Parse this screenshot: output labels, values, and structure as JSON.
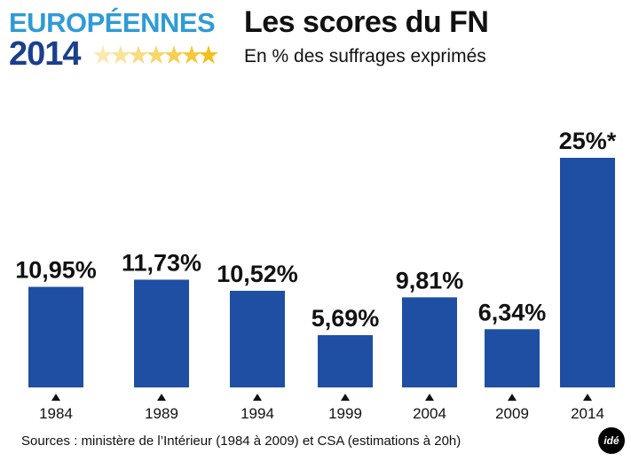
{
  "header": {
    "logo_line1": "EUROPÉENNES",
    "logo_line2": "2014",
    "title": "Les scores du FN",
    "subtitle": "En % des suffrages exprimés"
  },
  "chart_data": {
    "type": "bar",
    "title": "Les scores du FN",
    "subtitle": "En % des suffrages exprimés",
    "categories": [
      "1984",
      "1989",
      "1994",
      "1999",
      "2004",
      "2009",
      "2014"
    ],
    "values": [
      10.95,
      11.73,
      10.52,
      5.69,
      9.81,
      6.34,
      25
    ],
    "data_labels": [
      "10,95%",
      "11,73%",
      "10,52%",
      "5,69%",
      "9,81%",
      "6,34%",
      "25%*"
    ],
    "xlabel": "",
    "ylabel": "",
    "ylim": [
      0,
      25
    ],
    "grid": false
  },
  "footer": {
    "source": "Sources : ministère de l’Intérieur (1984 à 2009) et CSA (estimations à 20h)",
    "brand": "idé"
  },
  "colors": {
    "bar": "#1f4fa3",
    "logo_light": "#2f9bd6",
    "logo_dark": "#1a3f8f",
    "star": "#f2c01c",
    "text": "#111111"
  }
}
